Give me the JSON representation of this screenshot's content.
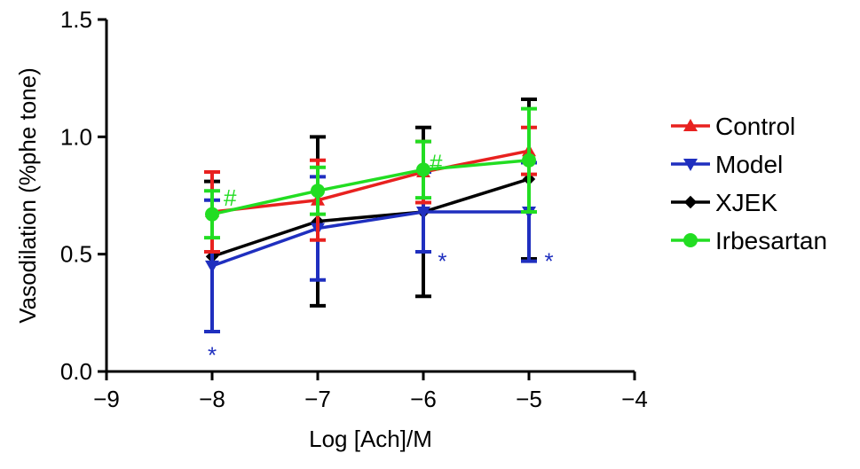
{
  "chart_data": {
    "type": "line",
    "title": "",
    "xlabel": "Log [Ach]/M",
    "ylabel": "Vasodilation (%phe tone)",
    "xlim": [
      -9,
      -4
    ],
    "ylim": [
      0.0,
      1.5
    ],
    "x_ticks": [
      -9,
      -8,
      -7,
      -6,
      -5,
      -4
    ],
    "x_tick_labels": [
      "−9",
      "−8",
      "−7",
      "−6",
      "−5",
      "−4"
    ],
    "y_ticks": [
      0.0,
      0.5,
      1.0,
      1.5
    ],
    "y_tick_labels": [
      "0.0",
      "0.5",
      "1.0",
      "1.5"
    ],
    "grid": false,
    "legend_position": "right",
    "series": [
      {
        "name": "Control",
        "color": "#e8211f",
        "marker": "triangle-up",
        "x": [
          -8,
          -7,
          -6,
          -5
        ],
        "y": [
          0.68,
          0.73,
          0.85,
          0.94
        ],
        "error": [
          0.17,
          0.17,
          0.13,
          0.1
        ]
      },
      {
        "name": "Model",
        "color": "#1f2fbf",
        "marker": "triangle-down",
        "x": [
          -8,
          -7,
          -6,
          -5
        ],
        "y": [
          0.45,
          0.61,
          0.68,
          0.68
        ],
        "error": [
          0.28,
          0.22,
          0.17,
          0.21
        ]
      },
      {
        "name": "XJEK",
        "color": "#000000",
        "marker": "diamond",
        "x": [
          -8,
          -7,
          -6,
          -5
        ],
        "y": [
          0.49,
          0.64,
          0.68,
          0.82
        ],
        "error": [
          0.32,
          0.36,
          0.36,
          0.34
        ]
      },
      {
        "name": "Irbesartan",
        "color": "#22dd22",
        "marker": "circle",
        "x": [
          -8,
          -7,
          -6,
          -5
        ],
        "y": [
          0.67,
          0.77,
          0.86,
          0.9
        ],
        "error": [
          0.1,
          0.1,
          0.12,
          0.22
        ]
      }
    ],
    "annotations": [
      {
        "text": "#",
        "color": "#22dd22",
        "x": -7.83,
        "y": 0.74
      },
      {
        "text": "#",
        "color": "#22dd22",
        "x": -5.88,
        "y": 0.89
      },
      {
        "text": "*",
        "color": "#1f2fbf",
        "x": -8.0,
        "y": 0.07
      },
      {
        "text": "*",
        "color": "#1f2fbf",
        "x": -5.82,
        "y": 0.47
      },
      {
        "text": "*",
        "color": "#1f2fbf",
        "x": -4.81,
        "y": 0.47
      }
    ]
  }
}
